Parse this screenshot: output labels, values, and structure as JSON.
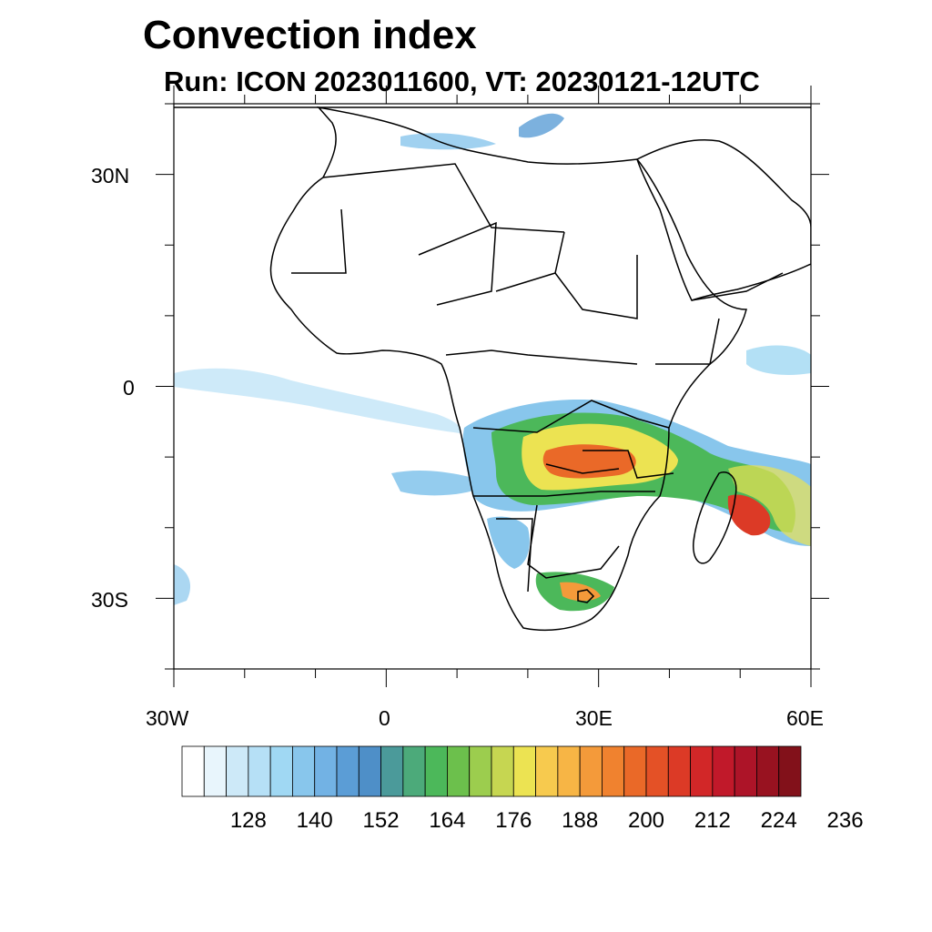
{
  "header": {
    "title": "Convection index",
    "subtitle": "Run: ICON 2023011600,  VT: 20230121-12UTC"
  },
  "map": {
    "region": "Africa",
    "lon_range": [
      -30,
      60
    ],
    "lat_range": [
      -40,
      40
    ],
    "x_ticks": [
      "30W",
      "0",
      "30E",
      "60E"
    ],
    "y_ticks": [
      "30N",
      "0",
      "30S"
    ],
    "coastline_color": "#000000",
    "ocean_color": "#ffffff"
  },
  "colorbar": {
    "tick_labels": [
      "128",
      "140",
      "152",
      "164",
      "176",
      "188",
      "200",
      "212",
      "224",
      "236"
    ],
    "colors": [
      "#ffffff",
      "#e8f5fc",
      "#cde9f8",
      "#b6e0f6",
      "#a0d8f3",
      "#88c6ec",
      "#72b2e4",
      "#5b9dd6",
      "#4e8fc8",
      "#4b9a9a",
      "#4caa7a",
      "#4cb85a",
      "#6cc04c",
      "#9ccd4e",
      "#c6d651",
      "#ece352",
      "#f7ca4e",
      "#f7b545",
      "#f49a3a",
      "#f0822f",
      "#ea6928",
      "#e45126",
      "#dc3a26",
      "#d22728",
      "#c1192a",
      "#ad1428",
      "#981220",
      "#82111a"
    ]
  }
}
